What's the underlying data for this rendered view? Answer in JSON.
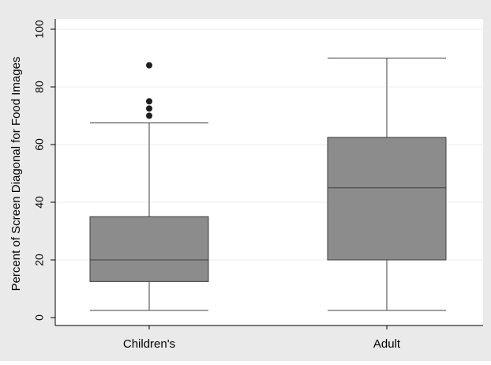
{
  "chart_data": {
    "type": "box",
    "title": "",
    "xlabel": "",
    "ylabel": "Percent of Screen Diagonal for Food Images",
    "ylim": [
      0,
      100
    ],
    "yticks": [
      "0",
      "20",
      "40",
      "60",
      "80",
      "100"
    ],
    "grid": true,
    "legend": "none",
    "colors": {
      "outer_background": "#eaeaea",
      "plot_background": "#ffffff",
      "box_fill": "#8c8c8c",
      "line": "#3f3f3f",
      "outlier": "#1f1f1f"
    },
    "categories": [
      "Children's",
      "Adult"
    ],
    "boxes": [
      {
        "label": "Children's",
        "whisker_low": 2.5,
        "q1": 12.5,
        "median": 20,
        "q3": 35,
        "whisker_high": 67.5,
        "outliers": [
          70,
          72.5,
          75,
          87.5
        ]
      },
      {
        "label": "Adult",
        "whisker_low": 2.5,
        "q1": 20,
        "median": 45,
        "q3": 62.5,
        "whisker_high": 90,
        "outliers": []
      }
    ]
  }
}
